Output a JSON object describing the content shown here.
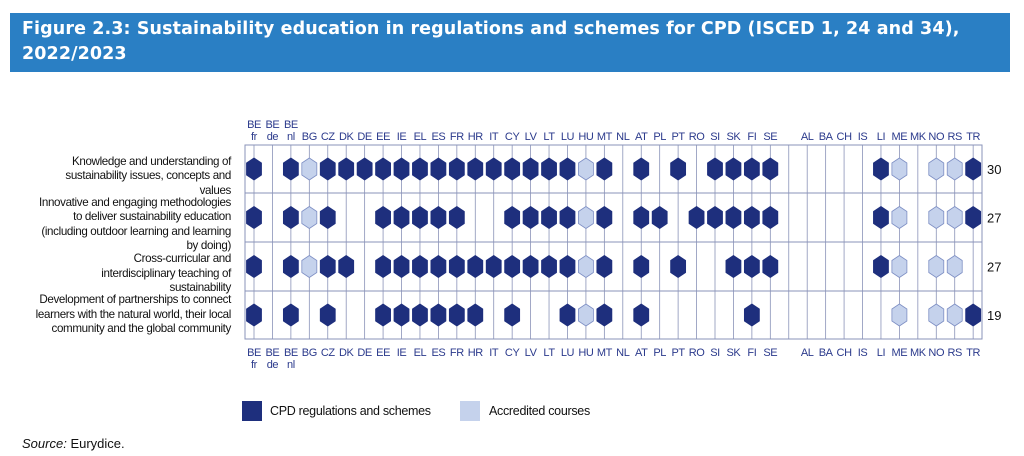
{
  "title": "Figure 2.3: Sustainability education in regulations and schemes for CPD (ISCED 1, 24 and 34), 2022/2023",
  "source_label": "Source:",
  "source_value": "Eurydice.",
  "colors": {
    "banner": "#2a7fc4",
    "cpd": "#1e2f7d",
    "accredited": "#c5d2ec",
    "grid": "#8a93b8",
    "axis_text": "#2b3a8c"
  },
  "chart_data": {
    "type": "table",
    "title": "Figure 2.3: Sustainability education in regulations and schemes for CPD (ISCED 1, 24 and 34), 2022/2023",
    "columns": [
      "BE fr",
      "BE de",
      "BE nl",
      "BG",
      "CZ",
      "DK",
      "DE",
      "EE",
      "IE",
      "EL",
      "ES",
      "FR",
      "HR",
      "IT",
      "CY",
      "LV",
      "LT",
      "LU",
      "HU",
      "MT",
      "NL",
      "AT",
      "PL",
      "PT",
      "RO",
      "SI",
      "SK",
      "FI",
      "SE",
      "",
      "AL",
      "BA",
      "CH",
      "IS",
      "LI",
      "ME",
      "MK",
      "NO",
      "RS",
      "TR"
    ],
    "legend": [
      {
        "key": "C",
        "label": "CPD regulations and schemes"
      },
      {
        "key": "A",
        "label": "Accredited courses"
      }
    ],
    "rows": [
      {
        "label": "Knowledge and understanding of sustainability issues, concepts and values",
        "total": "30",
        "values": [
          "C",
          "",
          "C",
          "A",
          "C",
          "C",
          "C",
          "C",
          "C",
          "C",
          "C",
          "C",
          "C",
          "C",
          "C",
          "C",
          "C",
          "C",
          "A",
          "C",
          "",
          "C",
          "",
          "C",
          "",
          "C",
          "C",
          "C",
          "C",
          "",
          "",
          "",
          "",
          "",
          "C",
          "A",
          "",
          "A",
          "A",
          "C"
        ]
      },
      {
        "label": "Innovative and engaging methodologies to deliver sustainability education (including outdoor learning and learning by doing)",
        "total": "27",
        "values": [
          "C",
          "",
          "C",
          "A",
          "C",
          "",
          "",
          "C",
          "C",
          "C",
          "C",
          "C",
          "",
          "",
          "C",
          "C",
          "C",
          "C",
          "A",
          "C",
          "",
          "C",
          "C",
          "",
          "C",
          "C",
          "C",
          "C",
          "C",
          "",
          "",
          "",
          "",
          "",
          "C",
          "A",
          "",
          "A",
          "A",
          "C"
        ]
      },
      {
        "label": "Cross-curricular and interdisciplinary teaching of sustainability",
        "total": "27",
        "values": [
          "C",
          "",
          "C",
          "A",
          "C",
          "C",
          "",
          "C",
          "C",
          "C",
          "C",
          "C",
          "C",
          "C",
          "C",
          "C",
          "C",
          "C",
          "A",
          "C",
          "",
          "C",
          "",
          "C",
          "",
          "",
          "C",
          "C",
          "C",
          "",
          "",
          "",
          "",
          "",
          "C",
          "A",
          "",
          "A",
          "A",
          ""
        ]
      },
      {
        "label": "Development of partnerships to connect learners with the natural world, their local community and the global community",
        "total": "19",
        "values": [
          "C",
          "",
          "C",
          "",
          "C",
          "",
          "",
          "C",
          "C",
          "C",
          "C",
          "C",
          "C",
          "",
          "C",
          "",
          "",
          "C",
          "A",
          "C",
          "",
          "C",
          "",
          "",
          "",
          "",
          "",
          "C",
          "",
          "",
          "",
          "",
          "",
          "",
          "",
          "A",
          "",
          "A",
          "A",
          "C"
        ]
      }
    ]
  }
}
